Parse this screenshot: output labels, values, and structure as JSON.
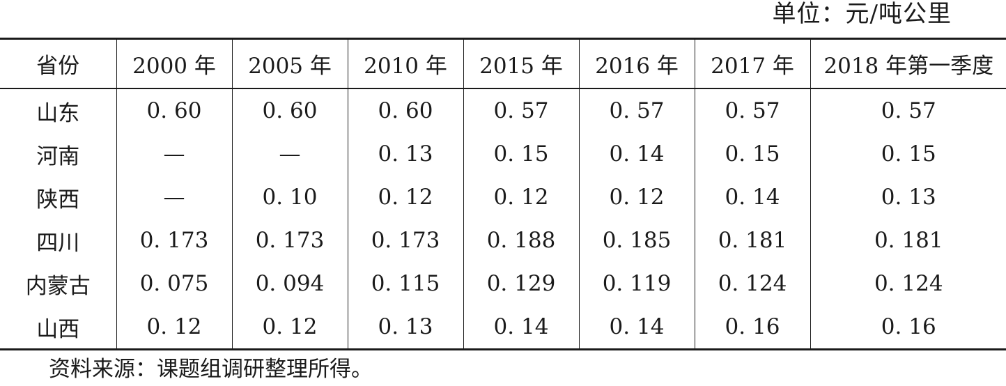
{
  "unit_label": "单位：元/吨公里",
  "table": {
    "headers": [
      "省份",
      "2000 年",
      "2005 年",
      "2010 年",
      "2015 年",
      "2016 年",
      "2017 年",
      "2018 年第一季度"
    ],
    "rows": [
      [
        "山东",
        "0. 60",
        "0. 60",
        "0. 60",
        "0. 57",
        "0. 57",
        "0. 57",
        "0. 57"
      ],
      [
        "河南",
        "—",
        "—",
        "0. 13",
        "0. 15",
        "0. 14",
        "0. 15",
        "0. 15"
      ],
      [
        "陕西",
        "—",
        "0. 10",
        "0. 12",
        "0. 12",
        "0. 12",
        "0. 14",
        "0. 13"
      ],
      [
        "四川",
        "0. 173",
        "0. 173",
        "0. 173",
        "0. 188",
        "0. 185",
        "0. 181",
        "0. 181"
      ],
      [
        "内蒙古",
        "0. 075",
        "0. 094",
        "0. 115",
        "0. 129",
        "0. 119",
        "0. 124",
        "0. 124"
      ],
      [
        "山西",
        "0. 12",
        "0. 12",
        "0. 13",
        "0. 14",
        "0. 14",
        "0. 16",
        "0. 16"
      ]
    ]
  },
  "source_note": "资料来源：课题组调研整理所得。"
}
